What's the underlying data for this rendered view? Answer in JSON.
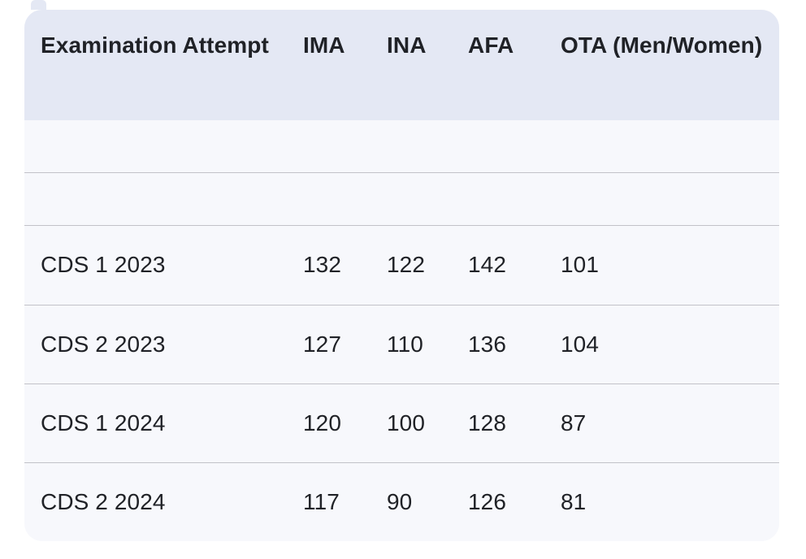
{
  "theme": {
    "page_bg": "#ffffff",
    "header_bg": "#e4e8f4",
    "row_bg": "#f7f8fc",
    "divider": "#c2c2c8",
    "text": "#202227"
  },
  "table": {
    "columns": [
      "Examination Attempt",
      "IMA",
      "INA",
      "AFA",
      "OTA (Men/Women)"
    ],
    "rows": [
      {
        "attempt": "",
        "ima": "",
        "ina": "",
        "afa": "",
        "ota": ""
      },
      {
        "attempt": "",
        "ima": "",
        "ina": "",
        "afa": "",
        "ota": ""
      },
      {
        "attempt": "CDS 1 2023",
        "ima": "132",
        "ina": "122",
        "afa": "142",
        "ota": "101"
      },
      {
        "attempt": "CDS 2 2023",
        "ima": "127",
        "ina": "110",
        "afa": "136",
        "ota": "104"
      },
      {
        "attempt": "CDS 1 2024",
        "ima": "120",
        "ina": "100",
        "afa": "128",
        "ota": "87"
      },
      {
        "attempt": "CDS 2 2024",
        "ima": "117",
        "ina": "90",
        "afa": "126",
        "ota": "81"
      }
    ]
  },
  "chart_data": {
    "type": "table",
    "title": "",
    "columns": [
      "Examination Attempt",
      "IMA",
      "INA",
      "AFA",
      "OTA (Men/Women)"
    ],
    "rows": [
      [
        "CDS 1 2023",
        132,
        122,
        142,
        101
      ],
      [
        "CDS 2 2023",
        127,
        110,
        136,
        104
      ],
      [
        "CDS 1 2024",
        120,
        100,
        128,
        87
      ],
      [
        "CDS 2 2024",
        117,
        90,
        126,
        81
      ]
    ]
  }
}
